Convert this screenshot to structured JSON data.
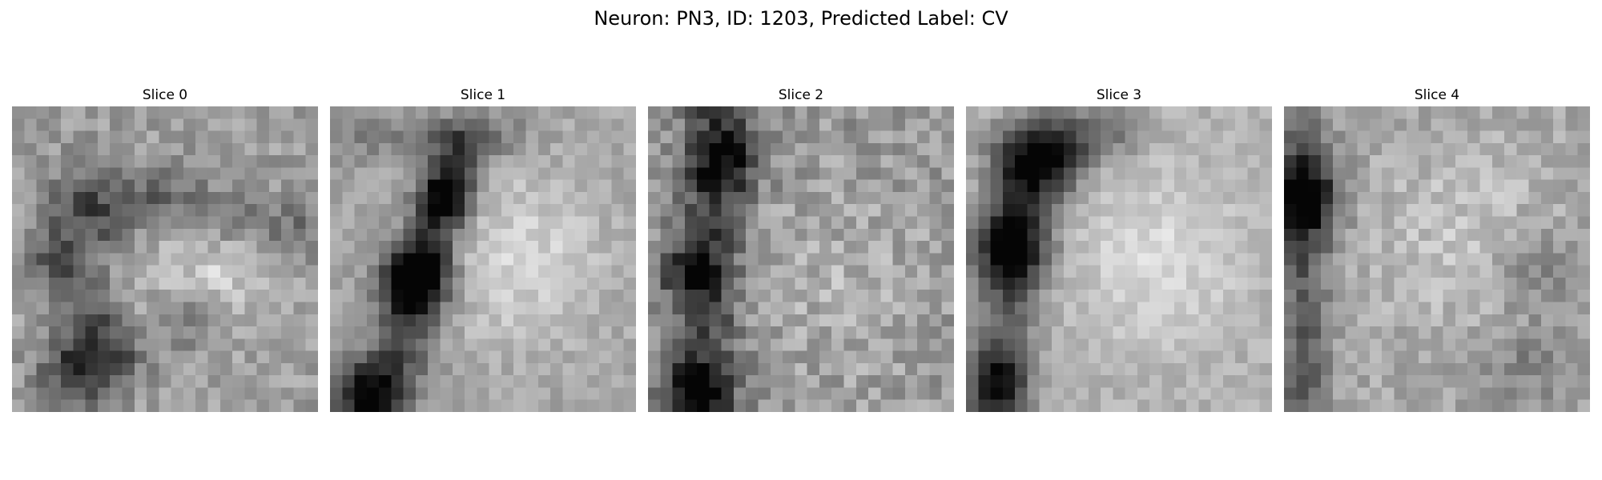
{
  "figure": {
    "title": "Neuron: PN3, ID: 1203, Predicted Label: CV"
  },
  "slices": [
    {
      "title": "Slice 0",
      "grid_size": 25,
      "seed": 11
    },
    {
      "title": "Slice 1",
      "grid_size": 25,
      "seed": 23
    },
    {
      "title": "Slice 2",
      "grid_size": 25,
      "seed": 37
    },
    {
      "title": "Slice 3",
      "grid_size": 25,
      "seed": 41
    },
    {
      "title": "Slice 4",
      "grid_size": 25,
      "seed": 53
    }
  ],
  "colormap": "gray"
}
